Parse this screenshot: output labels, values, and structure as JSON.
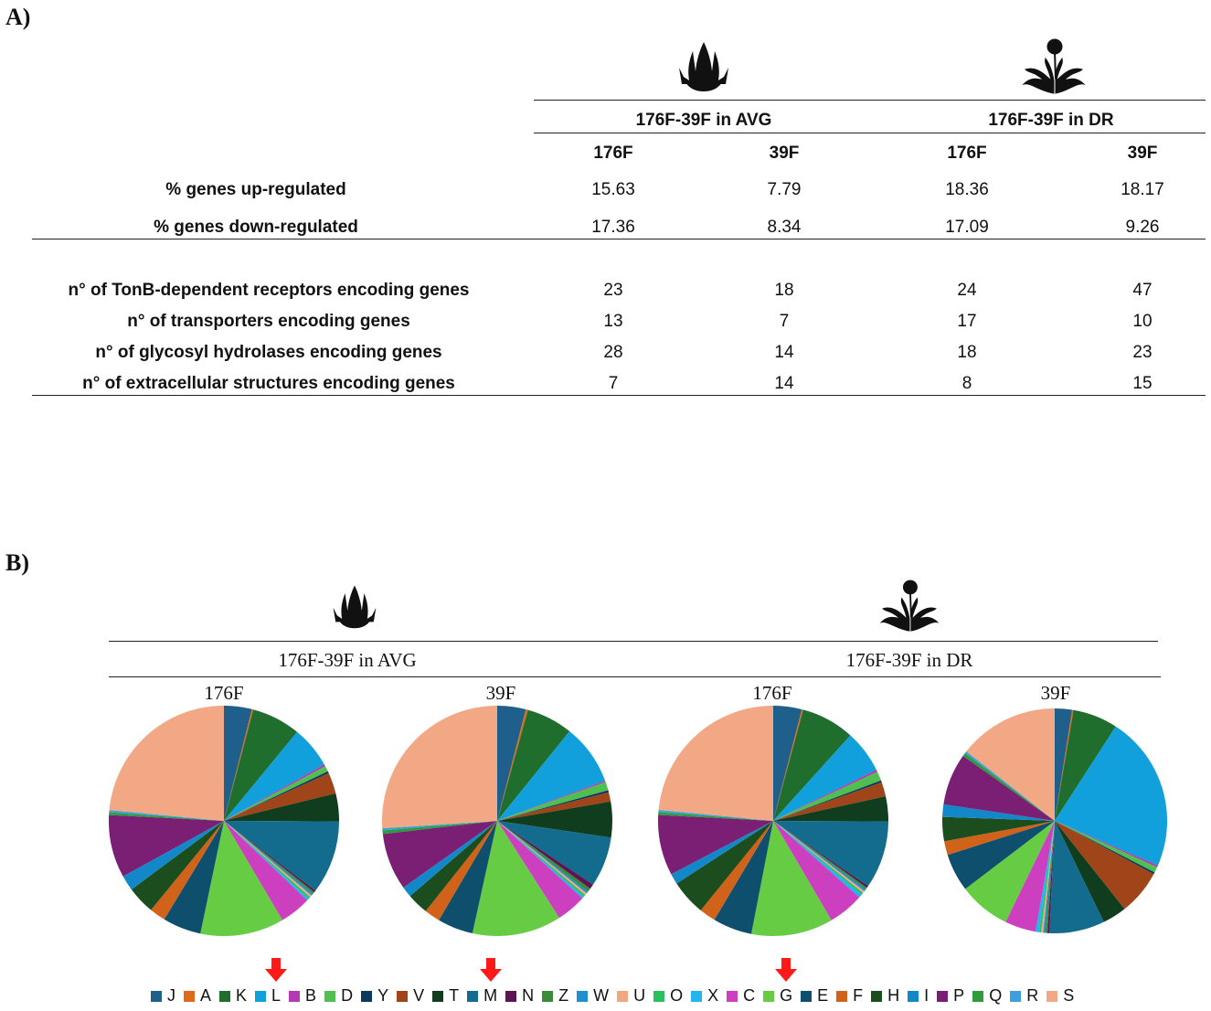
{
  "panel_a": {
    "label": "A)",
    "groups": [
      "176F-39F in AVG",
      "176F-39F in DR"
    ],
    "columns": [
      "176F",
      "39F",
      "176F",
      "39F"
    ],
    "rows": [
      {
        "label": "% genes up-regulated",
        "values": [
          "15.63",
          "7.79",
          "18.36",
          "18.17"
        ]
      },
      {
        "label": "% genes down-regulated",
        "values": [
          "17.36",
          "8.34",
          "17.09",
          "9.26"
        ]
      },
      {
        "label": "n° of TonB-dependent receptors encoding genes",
        "values": [
          "23",
          "18",
          "24",
          "47"
        ]
      },
      {
        "label": "n° of transporters encoding genes",
        "values": [
          "13",
          "7",
          "17",
          "10"
        ]
      },
      {
        "label": "n° of glycosyl hydrolases encoding genes",
        "values": [
          "28",
          "14",
          "18",
          "23"
        ]
      },
      {
        "label": "n° of extracellular structures encoding genes",
        "values": [
          "7",
          "14",
          "8",
          "15"
        ]
      }
    ]
  },
  "panel_b": {
    "label": "B)",
    "groups": [
      "176F-39F in AVG",
      "176F-39F in DR"
    ],
    "columns": [
      "176F",
      "39F",
      "176F",
      "39F"
    ]
  },
  "chart_data": {
    "type": "pie",
    "categories": [
      "J",
      "A",
      "K",
      "L",
      "B",
      "D",
      "Y",
      "V",
      "T",
      "M",
      "N",
      "Z",
      "W",
      "U",
      "O",
      "X",
      "C",
      "G",
      "E",
      "F",
      "H",
      "I",
      "P",
      "Q",
      "R",
      "S"
    ],
    "colors": [
      "#1f5f8b",
      "#e06a1b",
      "#1f6e2e",
      "#11a0dc",
      "#b23bb5",
      "#4fbf4f",
      "#0d3a5c",
      "#a0441a",
      "#0f3d1e",
      "#136b8e",
      "#5b1552",
      "#3a8c3a",
      "#1e8fcf",
      "#f0a882",
      "#2bbf5f",
      "#22b5ef",
      "#cc3fbf",
      "#66cc44",
      "#0e4f6e",
      "#d0621a",
      "#1b4d1f",
      "#1388c8",
      "#7a1f73",
      "#2e9b3c",
      "#3aa0e0",
      "#f2a885"
    ],
    "highlighted": [
      "L",
      "M",
      "G"
    ],
    "series": [
      {
        "name": "176F",
        "values": [
          4.0,
          0.2,
          7.0,
          6.0,
          0.3,
          0.8,
          0.3,
          3.0,
          4.0,
          10.5,
          0.3,
          0.3,
          0.3,
          0.3,
          0.3,
          0.3,
          4.5,
          12.0,
          5.5,
          2.3,
          4.0,
          2.2,
          9.0,
          0.4,
          0.3,
          24.0
        ]
      },
      {
        "name": "39F",
        "values": [
          4.0,
          0.3,
          6.5,
          8.5,
          0.2,
          1.2,
          0.3,
          1.3,
          5.0,
          7.0,
          0.7,
          0.5,
          0.3,
          0.3,
          0.3,
          0.3,
          4.2,
          12.5,
          5.0,
          2.2,
          3.0,
          1.5,
          8.0,
          0.5,
          0.3,
          26.0
        ]
      },
      {
        "name": "176F",
        "values": [
          4.0,
          0.2,
          7.5,
          6.0,
          0.3,
          1.3,
          0.3,
          2.0,
          3.5,
          9.5,
          0.3,
          0.3,
          0.3,
          0.3,
          0.3,
          0.5,
          5.0,
          11.5,
          5.5,
          2.3,
          5.0,
          1.5,
          8.5,
          0.4,
          0.3,
          23.5
        ]
      },
      {
        "name": "39F",
        "values": [
          2.5,
          0.2,
          6.5,
          22.5,
          0.3,
          0.8,
          0.3,
          6.5,
          3.5,
          8.0,
          0.3,
          0.3,
          0.3,
          0.3,
          0.3,
          0.5,
          4.5,
          7.5,
          5.5,
          2.0,
          3.5,
          1.8,
          7.5,
          0.5,
          0.3,
          14.5
        ]
      }
    ]
  }
}
